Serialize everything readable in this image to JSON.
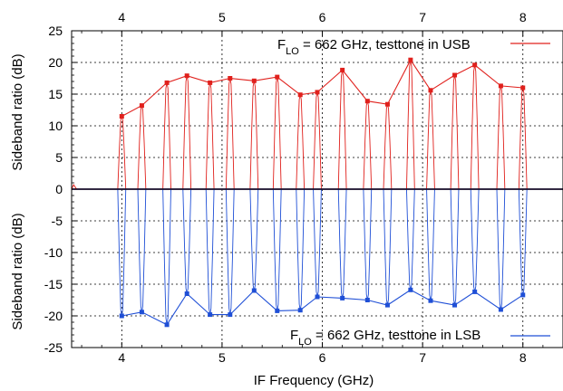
{
  "chart_data": {
    "type": "line",
    "xlabel": "IF Frequency (GHz)",
    "ylabel_top": "Sideband ratio (dB)",
    "ylabel_bottom": "Sideband ratio (dB)",
    "xlim": [
      3.5,
      8.4
    ],
    "ylim": [
      -25,
      25
    ],
    "xticks": [
      4,
      5,
      6,
      7,
      8
    ],
    "yticks": [
      25,
      20,
      15,
      10,
      5,
      0,
      -5,
      -10,
      -15,
      -20,
      -25
    ],
    "grid": true,
    "legend_placement": "top-right and bottom-right",
    "series": [
      {
        "name": "F_LO = 662 GHz, testtone in USB",
        "legend_main": "F",
        "legend_sub": "LO",
        "legend_rest": " = 662 GHz, testtone in USB",
        "color": "#e0201c",
        "peaks": [
          {
            "x": 4.0,
            "y": 11.5
          },
          {
            "x": 4.2,
            "y": 13.2
          },
          {
            "x": 4.45,
            "y": 16.8
          },
          {
            "x": 4.65,
            "y": 17.9
          },
          {
            "x": 4.88,
            "y": 16.8
          },
          {
            "x": 5.08,
            "y": 17.5
          },
          {
            "x": 5.32,
            "y": 17.1
          },
          {
            "x": 5.55,
            "y": 17.7
          },
          {
            "x": 5.78,
            "y": 14.9
          },
          {
            "x": 5.95,
            "y": 15.3
          },
          {
            "x": 6.2,
            "y": 18.8
          },
          {
            "x": 6.45,
            "y": 13.9
          },
          {
            "x": 6.65,
            "y": 13.4
          },
          {
            "x": 6.88,
            "y": 20.4
          },
          {
            "x": 7.08,
            "y": 15.6
          },
          {
            "x": 7.32,
            "y": 18.0
          },
          {
            "x": 7.52,
            "y": 19.6
          },
          {
            "x": 7.78,
            "y": 16.3
          },
          {
            "x": 8.0,
            "y": 16.0
          }
        ]
      },
      {
        "name": "F_LO = 662 GHz, testtone in LSB",
        "legend_main": "F",
        "legend_sub": "LO",
        "legend_rest": " = 662 GHz, testtone in LSB",
        "color": "#1f4fd6",
        "peaks": [
          {
            "x": 4.0,
            "y": -20.0
          },
          {
            "x": 4.2,
            "y": -19.4
          },
          {
            "x": 4.45,
            "y": -21.4
          },
          {
            "x": 4.65,
            "y": -16.5
          },
          {
            "x": 4.88,
            "y": -19.8
          },
          {
            "x": 5.08,
            "y": -19.8
          },
          {
            "x": 5.32,
            "y": -16.0
          },
          {
            "x": 5.55,
            "y": -19.2
          },
          {
            "x": 5.78,
            "y": -19.1
          },
          {
            "x": 5.95,
            "y": -17.0
          },
          {
            "x": 6.2,
            "y": -17.2
          },
          {
            "x": 6.45,
            "y": -17.5
          },
          {
            "x": 6.65,
            "y": -18.3
          },
          {
            "x": 6.88,
            "y": -15.9
          },
          {
            "x": 7.08,
            "y": -17.6
          },
          {
            "x": 7.32,
            "y": -18.3
          },
          {
            "x": 7.52,
            "y": -16.2
          },
          {
            "x": 7.78,
            "y": -19.0
          },
          {
            "x": 8.0,
            "y": -16.7
          }
        ]
      }
    ]
  }
}
